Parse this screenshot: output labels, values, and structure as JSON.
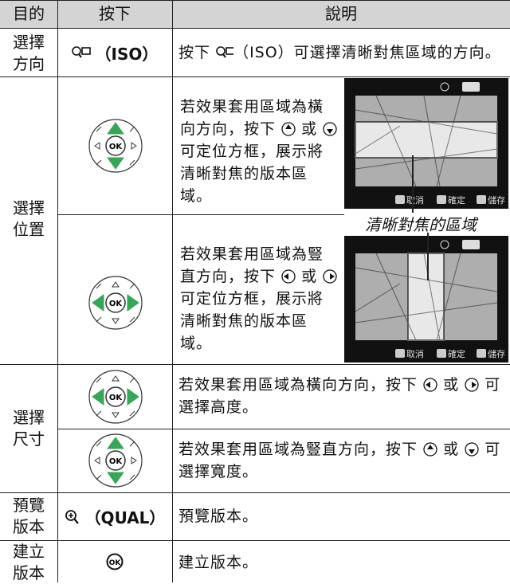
{
  "table": {
    "header": [
      "目的",
      "按下",
      "說明"
    ],
    "rows": [
      {
        "purpose": "選擇方向",
        "press": "（ISO）",
        "description": [
          "按下",
          "（ISO）可選擇清晰對焦區域的方向。"
        ]
      },
      {
        "purpose": "選擇位置",
        "subrows": [
          {
            "description": [
              "若效果套用區域為橫向方向，按下",
              "或",
              "可定位方框，展示將清晰對焦的版本區域。"
            ]
          },
          {
            "description": [
              "若效果套用區域為豎直方向，按下",
              "或",
              "可定位方框，展示將清晰對焦的版本區域。"
            ]
          }
        ],
        "caption": "清晰對焦的區域",
        "screen_labels": [
          "取消",
          "確定",
          "儲存"
        ]
      },
      {
        "purpose": "選擇尺寸",
        "subrows": [
          {
            "description": [
              "若效果套用區域為橫向方向，按下",
              "或",
              "可選擇高度。"
            ]
          },
          {
            "description": [
              "若效果套用區域為豎直方向，按下",
              "或",
              "可選擇寬度。"
            ]
          }
        ]
      },
      {
        "purpose": "預覽版本",
        "press": "（QUAL）",
        "description": [
          "預覽版本。"
        ]
      },
      {
        "purpose": "建立版本",
        "description": [
          "建立版本。"
        ]
      }
    ]
  }
}
